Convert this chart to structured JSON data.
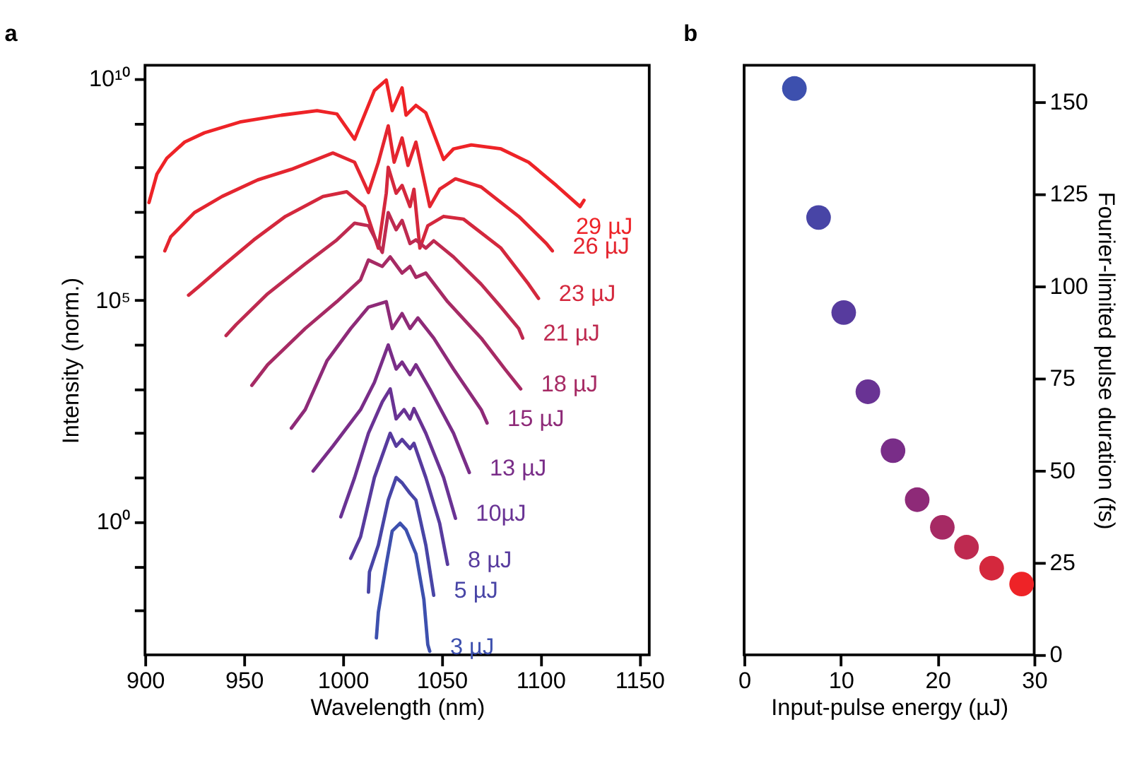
{
  "chart_data": [
    {
      "type": "line",
      "title": "a",
      "xlabel": "Wavelength (nm)",
      "ylabel": "Intensity (norm.)",
      "log": "y",
      "grid": false,
      "legend": false,
      "line_style": "solid",
      "marker": "none",
      "xlim": [
        900,
        1155
      ],
      "xticks": [
        900,
        950,
        1000,
        1050,
        1100,
        1150
      ],
      "ylim": [
        0.001,
        20000000000.0
      ],
      "yticks": [
        {
          "value": 0.01,
          "label": null
        },
        {
          "value": 0.1,
          "label": null
        },
        {
          "value": 1,
          "label": "10⁰"
        },
        {
          "value": 10,
          "label": null
        },
        {
          "value": 100,
          "label": null
        },
        {
          "value": 1000,
          "label": null
        },
        {
          "value": 10000,
          "label": null
        },
        {
          "value": 100000,
          "label": "10⁵"
        },
        {
          "value": 1000000,
          "label": null
        },
        {
          "value": 10000000,
          "label": null
        },
        {
          "value": 100000000,
          "label": null
        },
        {
          "value": 1000000000,
          "label": null
        },
        {
          "value": 10000000000,
          "label": "10¹⁰"
        }
      ],
      "series": [
        {
          "name": "29 µJ",
          "color": "#ee2327",
          "x": [
            902,
            906,
            911,
            920,
            930,
            948,
            969,
            987,
            997,
            1006,
            1016,
            1022,
            1025,
            1030,
            1032,
            1037,
            1042,
            1051,
            1056,
            1065,
            1080,
            1094,
            1108,
            1120,
            1122
          ],
          "values": [
            16000000.0,
            70000000.0,
            160000000.0,
            370000000.0,
            600000000.0,
            1050000000.0,
            1500000000.0,
            1900000000.0,
            1600000000.0,
            430000000.0,
            5400000000.0,
            9300000000.0,
            1900000000.0,
            6200000000.0,
            1500000000.0,
            2500000000.0,
            1700000000.0,
            150000000.0,
            260000000.0,
            320000000.0,
            260000000.0,
            130000000.0,
            39000000.0,
            13000000.0,
            18000000.0
          ]
        },
        {
          "name": "26 µJ",
          "color": "#e4252f",
          "x": [
            910,
            913,
            925,
            939,
            957,
            974,
            995,
            1006,
            1013,
            1018,
            1023,
            1026,
            1030,
            1033,
            1037,
            1044,
            1049,
            1057,
            1070,
            1089,
            1103,
            1106
          ],
          "values": [
            1300000.0,
            2700000.0,
            9500000.0,
            22000000.0,
            52000000.0,
            90000000.0,
            210000000.0,
            130000000.0,
            27000000.0,
            130000000.0,
            860000000.0,
            130000000.0,
            460000000.0,
            110000000.0,
            370000000.0,
            13000000.0,
            32000000.0,
            55000000.0,
            36000000.0,
            7800000.0,
            1900000.0,
            1300000.0
          ]
        },
        {
          "name": "23 µJ",
          "color": "#d4283d",
          "x": [
            922,
            927,
            939,
            955,
            971,
            990,
            1002,
            1011,
            1018,
            1022,
            1023,
            1027,
            1030,
            1034,
            1036,
            1039,
            1043,
            1051,
            1061,
            1080,
            1094,
            1099
          ],
          "values": [
            130000.0,
            200000.0,
            580000.0,
            2300000.0,
            7800000.0,
            22000000.0,
            28000000.0,
            13000000.0,
            1500000.0,
            26000000.0,
            100000000.0,
            26000000.0,
            39000000.0,
            13000000.0,
            32000000.0,
            1500000.0,
            4800000.0,
            7800000.0,
            6800000.0,
            1500000.0,
            230000.0,
            110000.0
          ]
        },
        {
          "name": "21 µJ",
          "color": "#be2a50",
          "x": [
            941,
            946,
            962,
            981,
            997,
            1006,
            1013,
            1020,
            1023,
            1027,
            1030,
            1034,
            1037,
            1042,
            1046,
            1056,
            1070,
            1080,
            1089,
            1091
          ],
          "values": [
            16000.0,
            28000.0,
            140000.0,
            660000.0,
            2300000.0,
            5500000.0,
            4800000.0,
            1200000.0,
            9500000.0,
            3900000.0,
            6300000.0,
            1900000.0,
            2300000.0,
            1500000.0,
            2200000.0,
            950000.0,
            230000.0,
            70000.0,
            23000.0,
            14000.0
          ]
        },
        {
          "name": "18 µJ",
          "color": "#a62a64",
          "x": [
            954,
            962,
            981,
            997,
            1009,
            1013,
            1020,
            1024,
            1030,
            1034,
            1037,
            1042,
            1053,
            1070,
            1082,
            1090
          ],
          "values": [
            1200.0,
            3500.0,
            23000.0,
            93000.0,
            290000.0,
            810000.0,
            580000.0,
            950000.0,
            410000.0,
            580000.0,
            330000.0,
            410000.0,
            93000.0,
            14000.0,
            2800.0,
            1000.0
          ]
        },
        {
          "name": "15 µJ",
          "color": "#8e2a78",
          "x": [
            974,
            981,
            992,
            1004,
            1013,
            1022,
            1025,
            1030,
            1034,
            1038,
            1046,
            1056,
            1070,
            1073
          ],
          "values": [
            130,
            340,
            4300.0,
            23000.0,
            70000.0,
            93000.0,
            23000.0,
            50000.0,
            23000.0,
            40000.0,
            14000.0,
            2800.0,
            340,
            170
          ]
        },
        {
          "name": "13 µJ",
          "color": "#792d88",
          "x": [
            985,
            995,
            1009,
            1016,
            1023,
            1027,
            1030,
            1034,
            1037,
            1044,
            1056,
            1064
          ],
          "values": [
            14,
            51,
            340,
            1400.0,
            9800.0,
            2800.0,
            4000.0,
            2100.0,
            3500.0,
            1000.0,
            100,
            13
          ]
        },
        {
          "name": "10µJ",
          "color": "#693394",
          "x": [
            999,
            1006,
            1013,
            1020,
            1024,
            1027,
            1031,
            1034,
            1036,
            1042,
            1051,
            1057
          ],
          "values": [
            1.3,
            10,
            100,
            510,
            1000,
            210,
            340,
            210,
            360,
            100,
            10,
            1.2
          ]
        },
        {
          "name": "8 µJ",
          "color": "#573b9e",
          "x": [
            1004,
            1009,
            1016,
            1024,
            1027,
            1030,
            1034,
            1036,
            1042,
            1049,
            1053
          ],
          "values": [
            0.15,
            0.46,
            10,
            100,
            51,
            72,
            45,
            59,
            10,
            0.93,
            0.11
          ]
        },
        {
          "name": "5 µJ",
          "color": "#4845a6",
          "x": [
            1013,
            1013.5,
            1018,
            1023,
            1027,
            1030,
            1034,
            1037,
            1042,
            1046
          ],
          "values": [
            0.026,
            0.074,
            0.3,
            3.1,
            10,
            7.6,
            4.4,
            3.1,
            0.3,
            0.022
          ]
        },
        {
          "name": "3 µJ",
          "color": "#3d50ae",
          "x": [
            1017,
            1018,
            1022,
            1025,
            1029,
            1032,
            1037,
            1041,
            1043,
            1044
          ],
          "values": [
            0.0024,
            0.0091,
            0.11,
            0.62,
            0.93,
            0.66,
            0.19,
            0.018,
            0.0017,
            0.0012
          ]
        }
      ]
    },
    {
      "type": "scatter",
      "title": "b",
      "xlabel": "Input-pulse energy (µJ)",
      "ylabel": "Fourier-limited pulse duration (fs)",
      "grid": false,
      "legend": false,
      "marker": "circle",
      "xlim": [
        0,
        30
      ],
      "xticks": [
        0,
        10,
        20,
        30
      ],
      "ylim": [
        0,
        160
      ],
      "yticks": [
        0,
        25,
        50,
        75,
        100,
        125,
        150
      ],
      "x": [
        5.2,
        7.7,
        10.3,
        12.8,
        15.4,
        17.9,
        20.5,
        23.0,
        25.6,
        28.7
      ],
      "values": [
        153.7,
        118.7,
        92.9,
        71.4,
        55.4,
        42.1,
        34.6,
        29.2,
        23.5,
        19.2
      ],
      "colors": [
        "#3d50ae",
        "#4845a6",
        "#573b9e",
        "#693394",
        "#792d88",
        "#8e2a78",
        "#a62a64",
        "#be2a50",
        "#d4283d",
        "#ee2327"
      ]
    }
  ]
}
